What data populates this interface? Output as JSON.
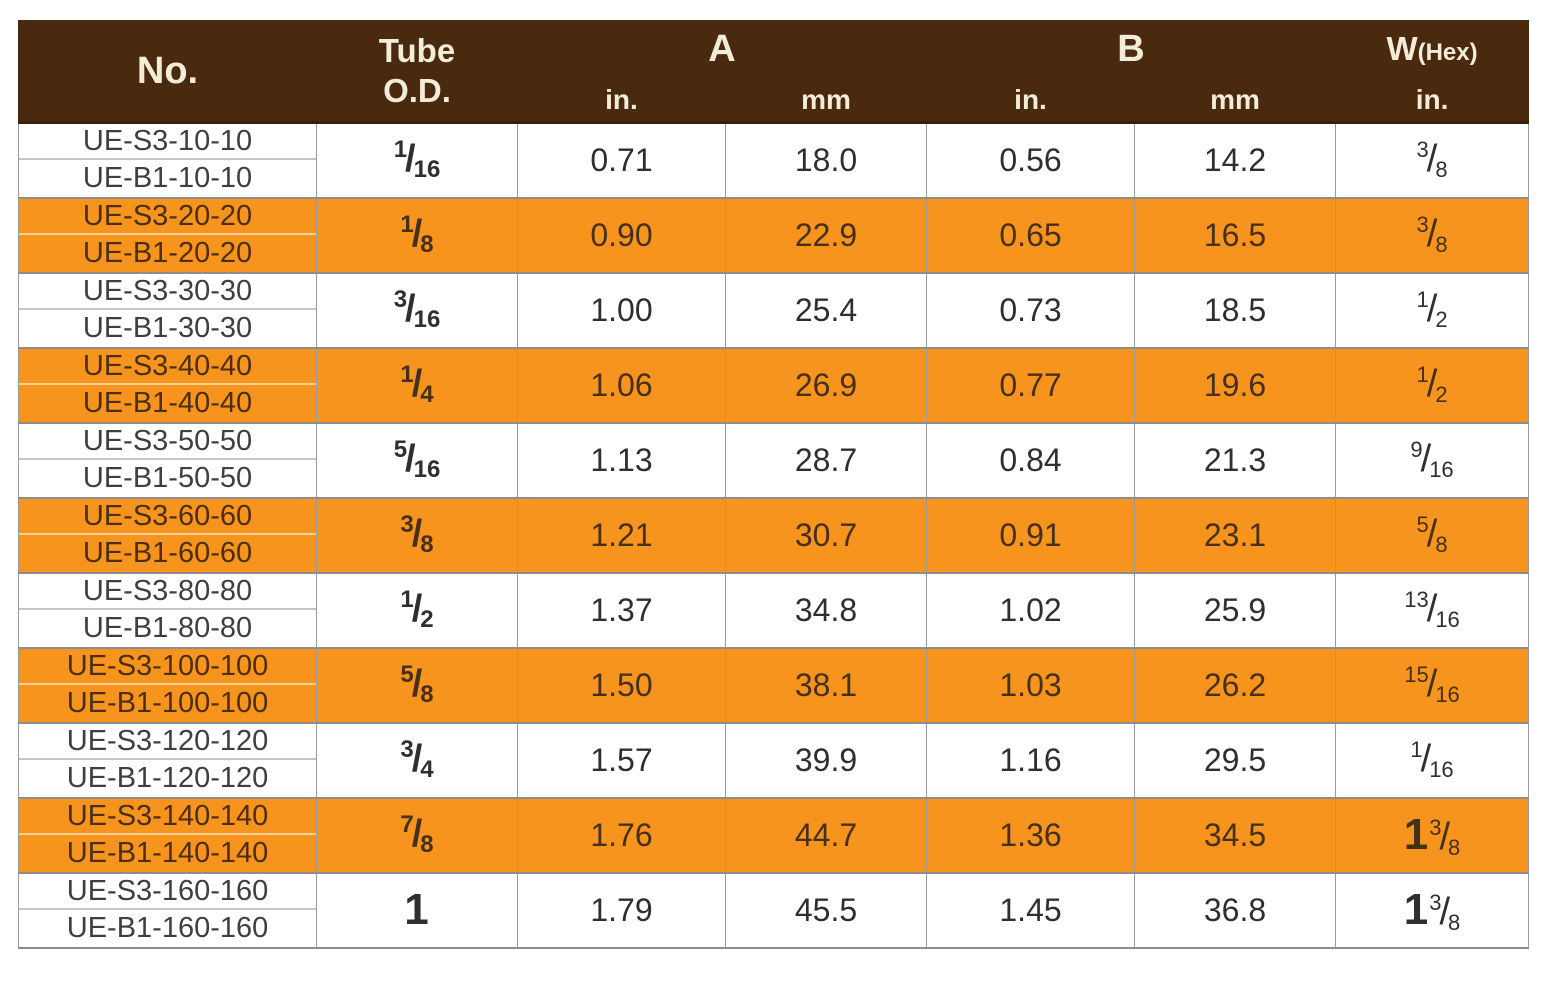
{
  "colors": {
    "header_brown": "#4a2a0e",
    "row_orange": "#f7941e",
    "header_text": "#f3ecd9",
    "grid_gray": "#9a9a9a"
  },
  "header": {
    "no": "No.",
    "tube_line1": "Tube",
    "tube_line2": "O.D.",
    "a": "A",
    "b": "B",
    "w_main": "W",
    "w_sub": "(Hex)",
    "units": [
      "in.",
      "mm",
      "in.",
      "mm",
      "in."
    ]
  },
  "rows": [
    {
      "no1": "UE-S3-10-10",
      "no2": "UE-B1-10-10",
      "tube": {
        "num": "1",
        "den": "16"
      },
      "a_in": "0.71",
      "a_mm": "18.0",
      "b_in": "0.56",
      "b_mm": "14.2",
      "w": {
        "num": "3",
        "den": "8"
      },
      "highlight": false
    },
    {
      "no1": "UE-S3-20-20",
      "no2": "UE-B1-20-20",
      "tube": {
        "num": "1",
        "den": "8"
      },
      "a_in": "0.90",
      "a_mm": "22.9",
      "b_in": "0.65",
      "b_mm": "16.5",
      "w": {
        "num": "3",
        "den": "8"
      },
      "highlight": true
    },
    {
      "no1": "UE-S3-30-30",
      "no2": "UE-B1-30-30",
      "tube": {
        "num": "3",
        "den": "16"
      },
      "a_in": "1.00",
      "a_mm": "25.4",
      "b_in": "0.73",
      "b_mm": "18.5",
      "w": {
        "num": "1",
        "den": "2"
      },
      "highlight": false
    },
    {
      "no1": "UE-S3-40-40",
      "no2": "UE-B1-40-40",
      "tube": {
        "num": "1",
        "den": "4"
      },
      "a_in": "1.06",
      "a_mm": "26.9",
      "b_in": "0.77",
      "b_mm": "19.6",
      "w": {
        "num": "1",
        "den": "2"
      },
      "highlight": true
    },
    {
      "no1": "UE-S3-50-50",
      "no2": "UE-B1-50-50",
      "tube": {
        "num": "5",
        "den": "16"
      },
      "a_in": "1.13",
      "a_mm": "28.7",
      "b_in": "0.84",
      "b_mm": "21.3",
      "w": {
        "num": "9",
        "den": "16"
      },
      "highlight": false
    },
    {
      "no1": "UE-S3-60-60",
      "no2": "UE-B1-60-60",
      "tube": {
        "num": "3",
        "den": "8"
      },
      "a_in": "1.21",
      "a_mm": "30.7",
      "b_in": "0.91",
      "b_mm": "23.1",
      "w": {
        "num": "5",
        "den": "8"
      },
      "highlight": true
    },
    {
      "no1": "UE-S3-80-80",
      "no2": "UE-B1-80-80",
      "tube": {
        "num": "1",
        "den": "2"
      },
      "a_in": "1.37",
      "a_mm": "34.8",
      "b_in": "1.02",
      "b_mm": "25.9",
      "w": {
        "num": "13",
        "den": "16"
      },
      "highlight": false
    },
    {
      "no1": "UE-S3-100-100",
      "no2": "UE-B1-100-100",
      "tube": {
        "num": "5",
        "den": "8"
      },
      "a_in": "1.50",
      "a_mm": "38.1",
      "b_in": "1.03",
      "b_mm": "26.2",
      "w": {
        "num": "15",
        "den": "16"
      },
      "highlight": true
    },
    {
      "no1": "UE-S3-120-120",
      "no2": "UE-B1-120-120",
      "tube": {
        "num": "3",
        "den": "4"
      },
      "a_in": "1.57",
      "a_mm": "39.9",
      "b_in": "1.16",
      "b_mm": "29.5",
      "w": {
        "num": "1",
        "den": "16"
      },
      "highlight": false
    },
    {
      "no1": "UE-S3-140-140",
      "no2": "UE-B1-140-140",
      "tube": {
        "num": "7",
        "den": "8"
      },
      "a_in": "1.76",
      "a_mm": "44.7",
      "b_in": "1.36",
      "b_mm": "34.5",
      "w": {
        "whole": "1",
        "num": "3",
        "den": "8"
      },
      "highlight": true
    },
    {
      "no1": "UE-S3-160-160",
      "no2": "UE-B1-160-160",
      "tube": {
        "whole": "1"
      },
      "a_in": "1.79",
      "a_mm": "45.5",
      "b_in": "1.45",
      "b_mm": "36.8",
      "w": {
        "whole": "1",
        "num": "3",
        "den": "8"
      },
      "highlight": false
    }
  ],
  "chart_data": {
    "type": "table",
    "title": "",
    "columns": [
      "No.",
      "Tube O.D.",
      "A in.",
      "A mm",
      "B in.",
      "B mm",
      "W(Hex) in."
    ],
    "rows": [
      [
        "UE-S3-10-10 / UE-B1-10-10",
        "1/16",
        "0.71",
        "18.0",
        "0.56",
        "14.2",
        "3/8"
      ],
      [
        "UE-S3-20-20 / UE-B1-20-20",
        "1/8",
        "0.90",
        "22.9",
        "0.65",
        "16.5",
        "3/8"
      ],
      [
        "UE-S3-30-30 / UE-B1-30-30",
        "3/16",
        "1.00",
        "25.4",
        "0.73",
        "18.5",
        "1/2"
      ],
      [
        "UE-S3-40-40 / UE-B1-40-40",
        "1/4",
        "1.06",
        "26.9",
        "0.77",
        "19.6",
        "1/2"
      ],
      [
        "UE-S3-50-50 / UE-B1-50-50",
        "5/16",
        "1.13",
        "28.7",
        "0.84",
        "21.3",
        "9/16"
      ],
      [
        "UE-S3-60-60 / UE-B1-60-60",
        "3/8",
        "1.21",
        "30.7",
        "0.91",
        "23.1",
        "5/8"
      ],
      [
        "UE-S3-80-80 / UE-B1-80-80",
        "1/2",
        "1.37",
        "34.8",
        "1.02",
        "25.9",
        "13/16"
      ],
      [
        "UE-S3-100-100 / UE-B1-100-100",
        "5/8",
        "1.50",
        "38.1",
        "1.03",
        "26.2",
        "15/16"
      ],
      [
        "UE-S3-120-120 / UE-B1-120-120",
        "3/4",
        "1.57",
        "39.9",
        "1.16",
        "29.5",
        "1/16"
      ],
      [
        "UE-S3-140-140 / UE-B1-140-140",
        "7/8",
        "1.76",
        "44.7",
        "1.36",
        "34.5",
        "1 3/8"
      ],
      [
        "UE-S3-160-160 / UE-B1-160-160",
        "1",
        "1.79",
        "45.5",
        "1.45",
        "36.8",
        "1 3/8"
      ]
    ]
  }
}
